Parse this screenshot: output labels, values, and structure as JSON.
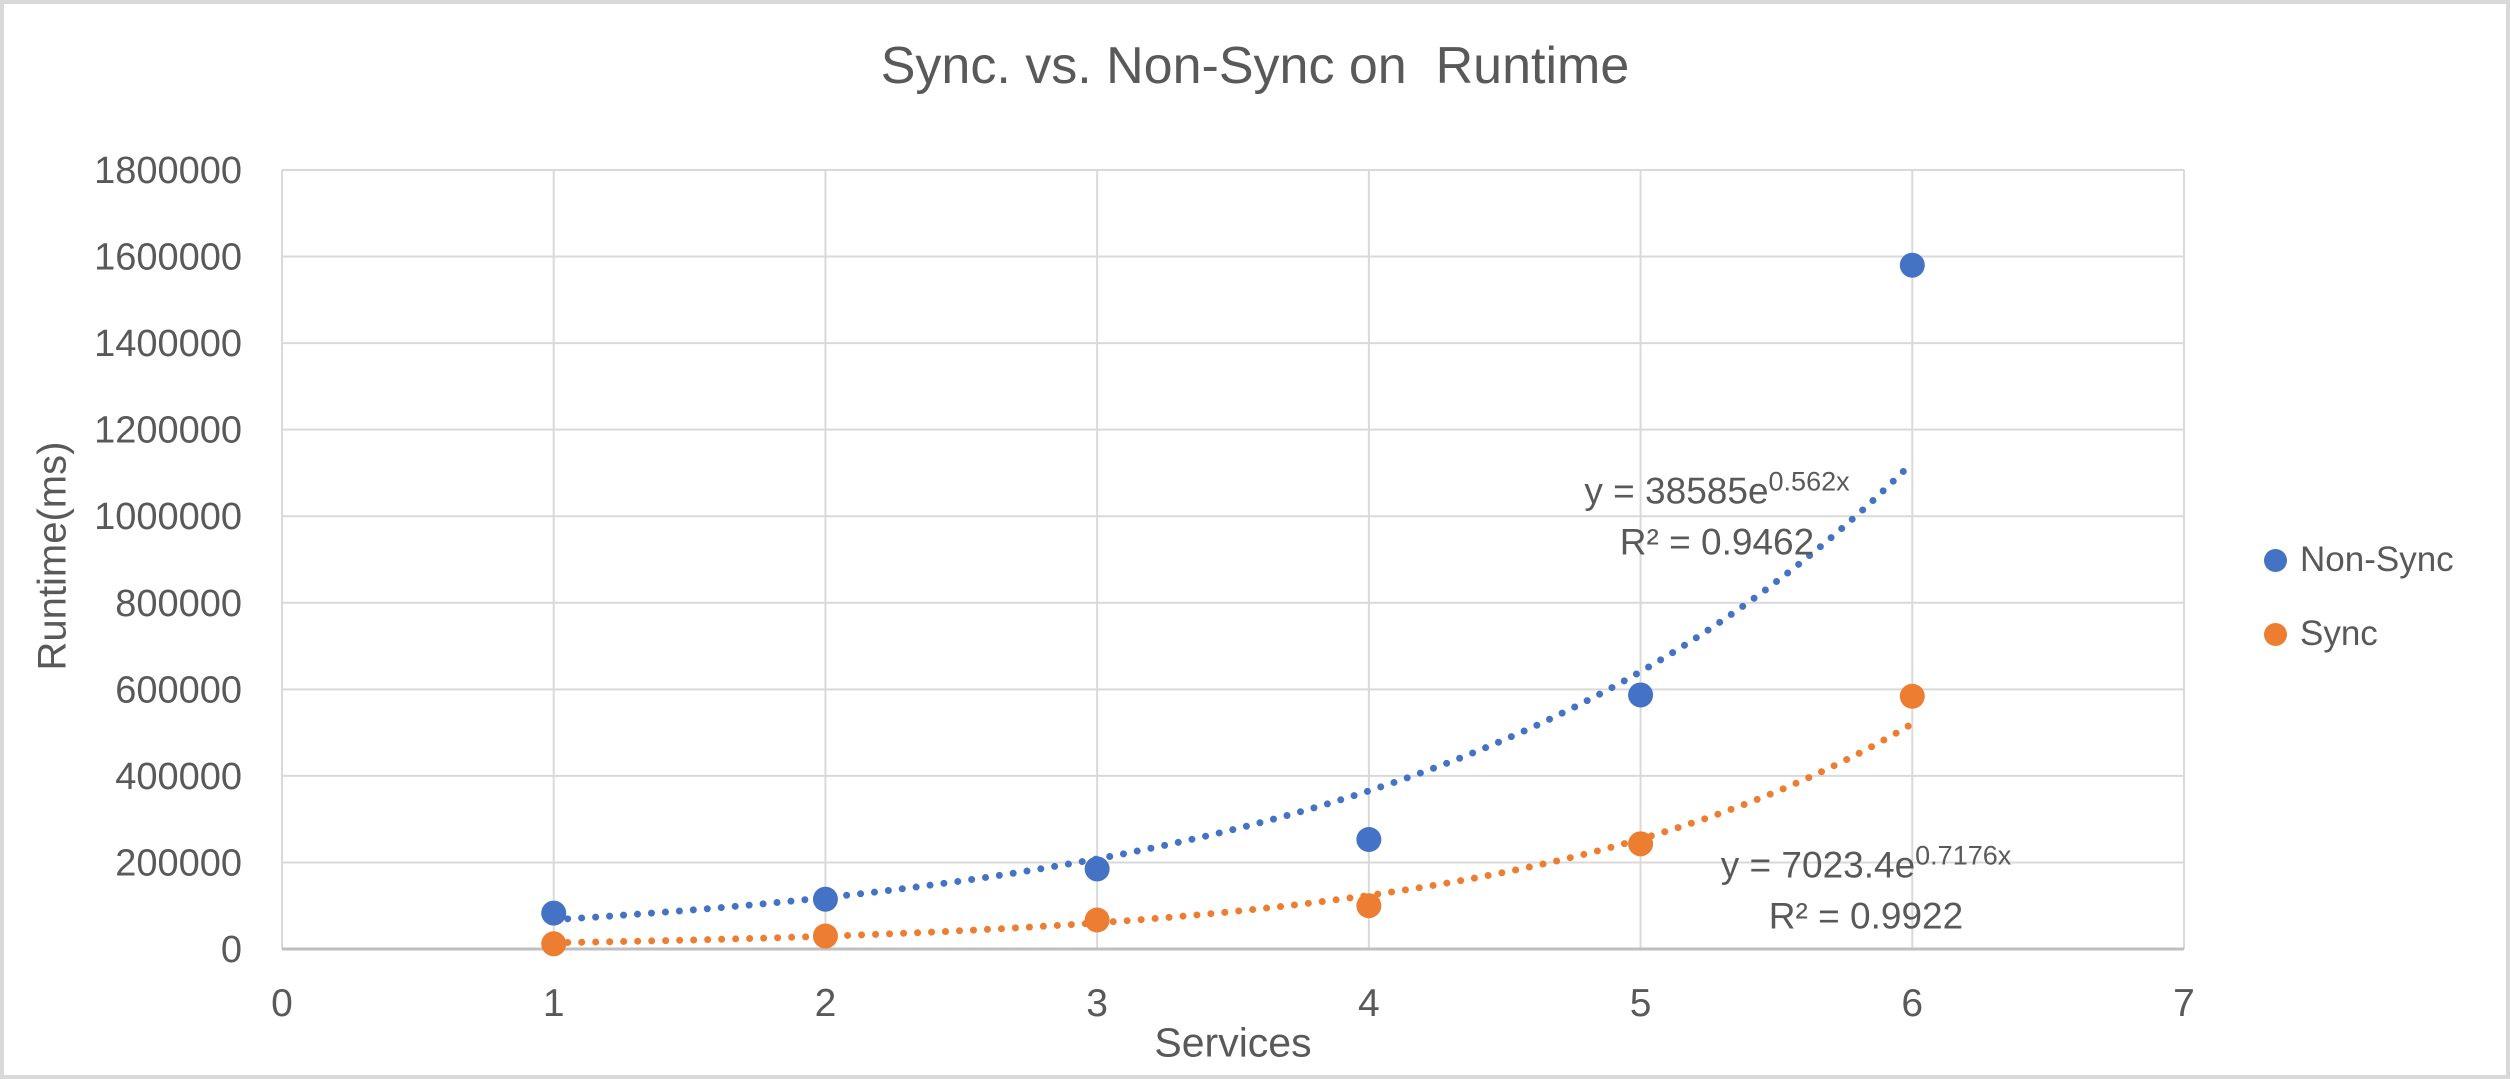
{
  "chart_data": {
    "type": "scatter",
    "title": "Sync. vs. Non-Sync on  Runtime",
    "xlabel": "Services",
    "ylabel": "Runtime(ms)",
    "xlim": [
      0,
      7
    ],
    "ylim": [
      0,
      1800000
    ],
    "x_ticks": [
      0,
      1,
      2,
      3,
      4,
      5,
      6,
      7
    ],
    "y_ticks": [
      0,
      200000,
      400000,
      600000,
      800000,
      1000000,
      1200000,
      1400000,
      1600000,
      1800000
    ],
    "grid": true,
    "legend_position": "right",
    "colors": {
      "text": "#595959",
      "grid": "#D9D9D9",
      "axis": "#BFBFBF",
      "background": "#FFFFFF",
      "border": "#D9D9D9"
    },
    "series": [
      {
        "name": "Non-Sync",
        "color": "#4472C4",
        "marker": "circle",
        "x": [
          1,
          2,
          3,
          4,
          5,
          6
        ],
        "y": [
          83000,
          115000,
          185000,
          253000,
          587000,
          1580000
        ],
        "trendline": {
          "type": "exponential",
          "a": 38585,
          "b": 0.562,
          "x_start": 1,
          "x_end": 6,
          "style": "dotted"
        },
        "equation": {
          "base": "y = 38585e",
          "exponent": "0.562x",
          "r2": "R² = 0.9462"
        }
      },
      {
        "name": "Sync",
        "color": "#ED7D31",
        "marker": "circle",
        "x": [
          1,
          2,
          3,
          4,
          5,
          6
        ],
        "y": [
          12000,
          30000,
          67000,
          100000,
          243000,
          584000
        ],
        "trendline": {
          "type": "exponential",
          "a": 7023.4,
          "b": 0.7176,
          "x_start": 1,
          "x_end": 6,
          "style": "dotted"
        },
        "equation": {
          "base": "y = 7023.4e",
          "exponent": "0.7176x",
          "r2": "R² = 0.9922"
        }
      }
    ]
  }
}
